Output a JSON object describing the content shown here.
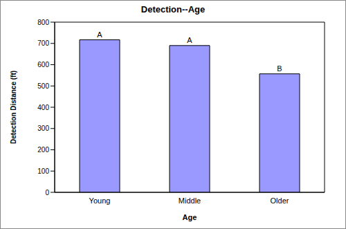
{
  "chart_data": {
    "type": "bar",
    "title": "Detection--Age",
    "x_label": "Age",
    "y_label": "Detection Distance (ft)",
    "categories": [
      "Young",
      "Middle",
      "Older"
    ],
    "values": [
      717,
      690,
      557
    ],
    "annotations": [
      "A",
      "A",
      "B"
    ],
    "color": "#9999ff",
    "ylim": [
      0,
      800
    ],
    "yticks": [
      0,
      100,
      200,
      300,
      400,
      500,
      600,
      700,
      800
    ],
    "grid": false
  }
}
